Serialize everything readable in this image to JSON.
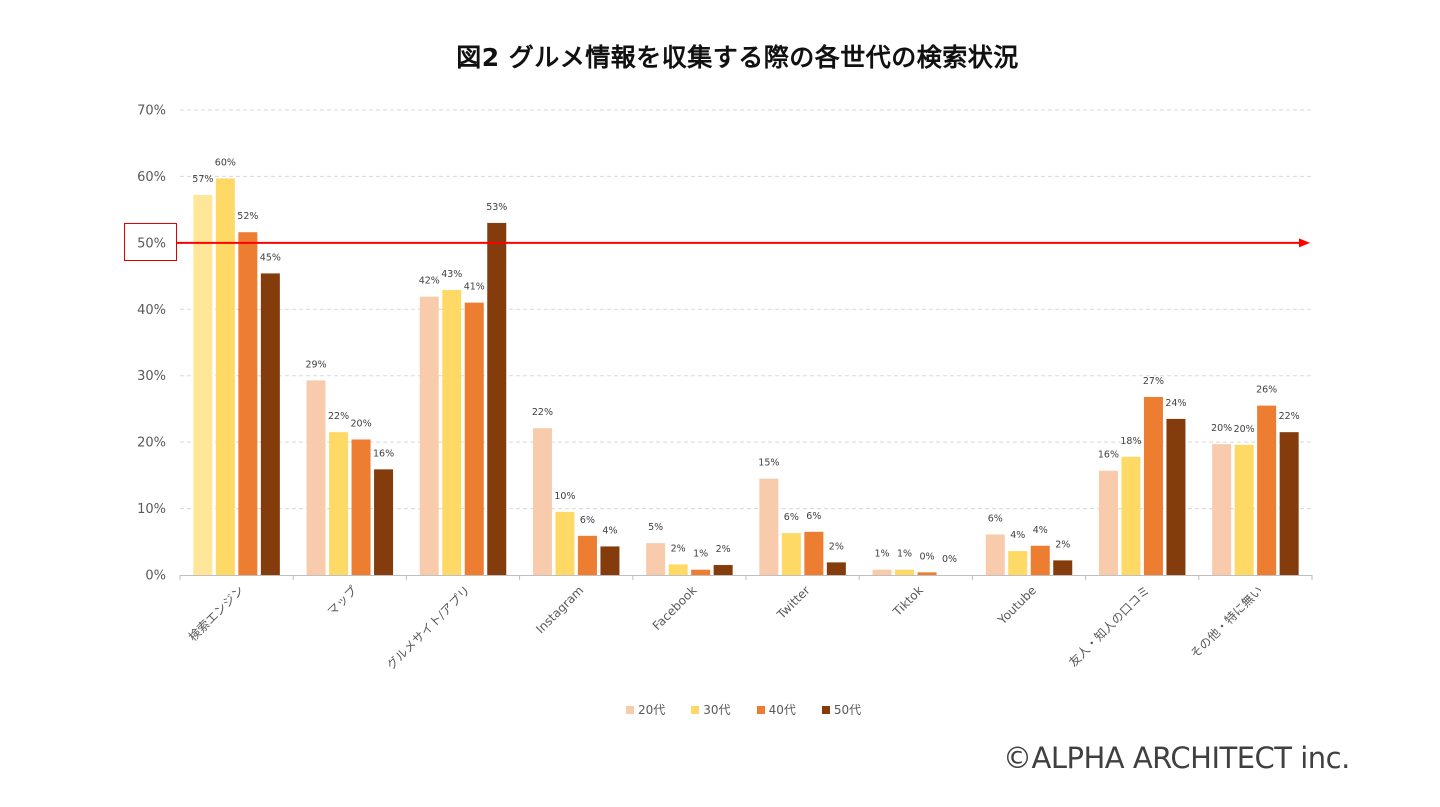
{
  "chart_data": {
    "type": "bar",
    "title": "図2 グルメ情報を収集する際の各世代の検索状況",
    "xlabel": "",
    "ylabel": "",
    "ylim": [
      0,
      70
    ],
    "yticks": [
      0,
      10,
      20,
      30,
      40,
      50,
      60,
      70
    ],
    "ytick_labels": [
      "0%",
      "10%",
      "20%",
      "30%",
      "40%",
      "50%",
      "60%",
      "70%"
    ],
    "grid": true,
    "legend_position": "bottom",
    "categories": [
      "検索エンジン",
      "マップ",
      "グルメサイト/アプリ",
      "Instagram",
      "Facebook",
      "Twitter",
      "Tiktok",
      "Youtube",
      "友人・知人の口コミ",
      "その他・特に無い"
    ],
    "series": [
      {
        "name": "20代",
        "color": "#F8CBAD",
        "values": [
          57.2,
          29.3,
          41.9,
          22.1,
          4.8,
          14.5,
          0.8,
          6.1,
          15.7,
          19.7
        ],
        "labels": [
          "57%",
          "29%",
          "42%",
          "22%",
          "5%",
          "15%",
          "1%",
          "6%",
          "16%",
          "20%"
        ]
      },
      {
        "name": "30代",
        "color": "#FFD966",
        "values": [
          59.7,
          21.5,
          42.9,
          9.5,
          1.6,
          6.3,
          0.8,
          3.6,
          17.8,
          19.6
        ],
        "labels": [
          "60%",
          "22%",
          "43%",
          "10%",
          "2%",
          "6%",
          "1%",
          "4%",
          "18%",
          "20%"
        ]
      },
      {
        "name": "40代",
        "color": "#ED7D31",
        "values": [
          51.6,
          20.4,
          41.0,
          5.9,
          0.8,
          6.5,
          0.4,
          4.4,
          26.8,
          25.5
        ],
        "labels": [
          "52%",
          "20%",
          "41%",
          "6%",
          "1%",
          "6%",
          "0%",
          "4%",
          "27%",
          "26%"
        ]
      },
      {
        "name": "50代",
        "color": "#843C0C",
        "values": [
          45.4,
          15.9,
          53.0,
          4.3,
          1.5,
          1.9,
          0.0,
          2.2,
          23.5,
          21.5
        ],
        "labels": [
          "45%",
          "16%",
          "53%",
          "4%",
          "2%",
          "2%",
          "0%",
          "2%",
          "24%",
          "22%"
        ]
      }
    ],
    "first_bar_color_override": "#FFE699",
    "annotations": {
      "reference_line": {
        "value": 50,
        "color": "#FF0000",
        "style": "arrow"
      },
      "highlighted_tick": "50%"
    }
  },
  "footer": {
    "copyright": "©ALPHA ARCHITECT inc."
  }
}
